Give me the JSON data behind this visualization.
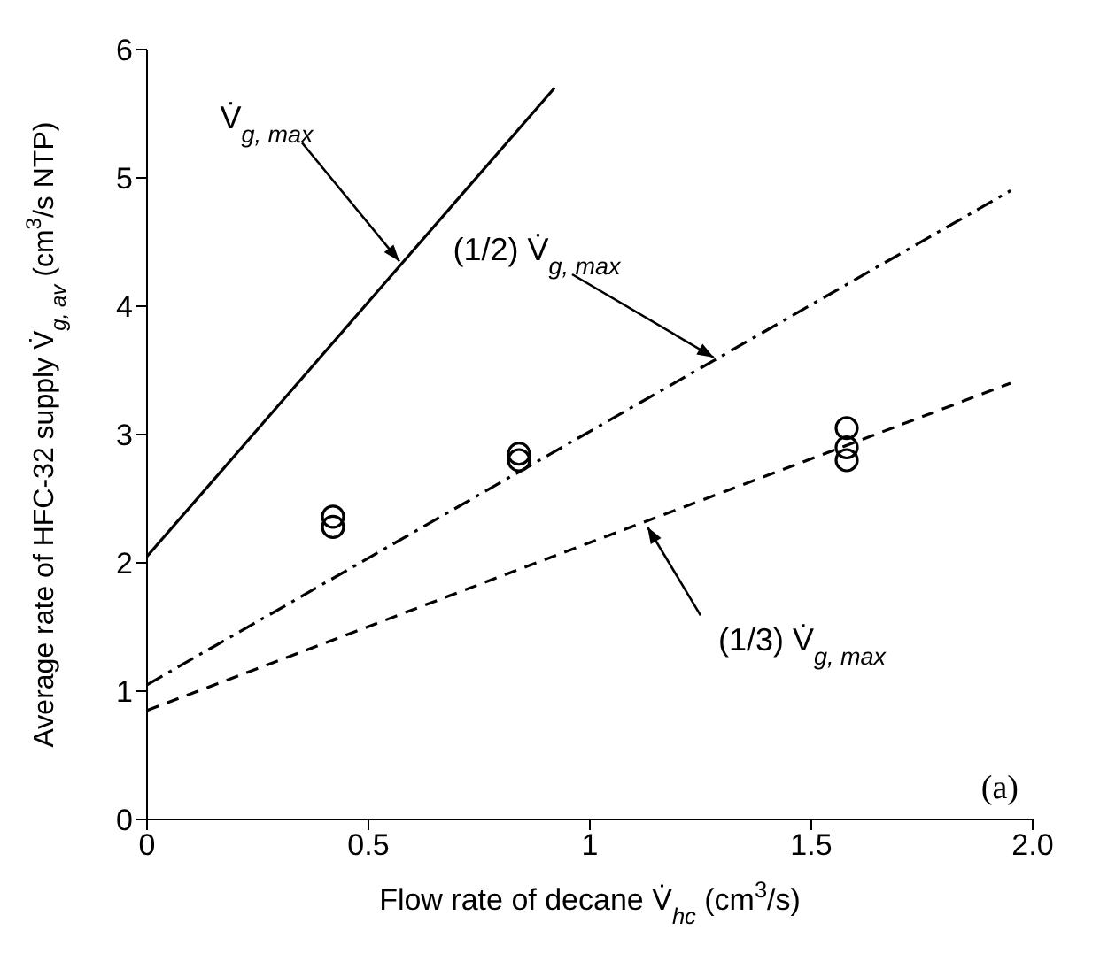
{
  "chart_data": {
    "type": "scatter",
    "xlabel": "Flow rate of decane V̇$_{hc}$ (cm$^{3}$/s)",
    "ylabel": "Average rate of HFC-32 supply V̇$_{g, av}$ (cm$^{3}$/s NTP)",
    "series": [
      {
        "color": "#000000",
        "marker": "circle",
        "x": [
          0.42,
          0.42,
          0.84,
          0.84,
          1.58,
          1.58,
          1.58
        ],
        "values": [
          2.28,
          2.36,
          2.8,
          2.85,
          2.8,
          2.9,
          3.05
        ]
      },
      {
        "type": "line",
        "color": "#000000",
        "line_style": "solid",
        "marker": "none",
        "x": [
          0,
          0.92
        ],
        "values": [
          2.05,
          5.7
        ]
      },
      {
        "type": "line",
        "color": "#000000",
        "line_style": "dashdot",
        "marker": "none",
        "x": [
          0,
          1.95
        ],
        "values": [
          1.05,
          4.9
        ]
      },
      {
        "type": "line",
        "color": "#000000",
        "line_style": "dashed",
        "marker": "none",
        "x": [
          0,
          1.95
        ],
        "values": [
          0.85,
          3.4
        ]
      }
    ],
    "xlim": [
      0,
      2.0
    ],
    "xticks": [
      0,
      0.5,
      1,
      1.5,
      {
        "value": 2,
        "label": "2.0"
      }
    ],
    "ylim": [
      0,
      6
    ],
    "yticks": [
      0,
      1,
      2,
      3,
      4,
      5,
      6
    ],
    "grid": false,
    "annotations": [
      {
        "text": "V̇$_{g, max}$",
        "x": 0.57,
        "y": 4.35
      },
      {
        "text": "(1/2) V̇$_{g, max}$",
        "x": 1.28,
        "y": 3.6
      },
      {
        "text": "(1/3) V̇$_{g, max}$",
        "x": 1.13,
        "y": 2.28
      },
      "(a)"
    ]
  }
}
